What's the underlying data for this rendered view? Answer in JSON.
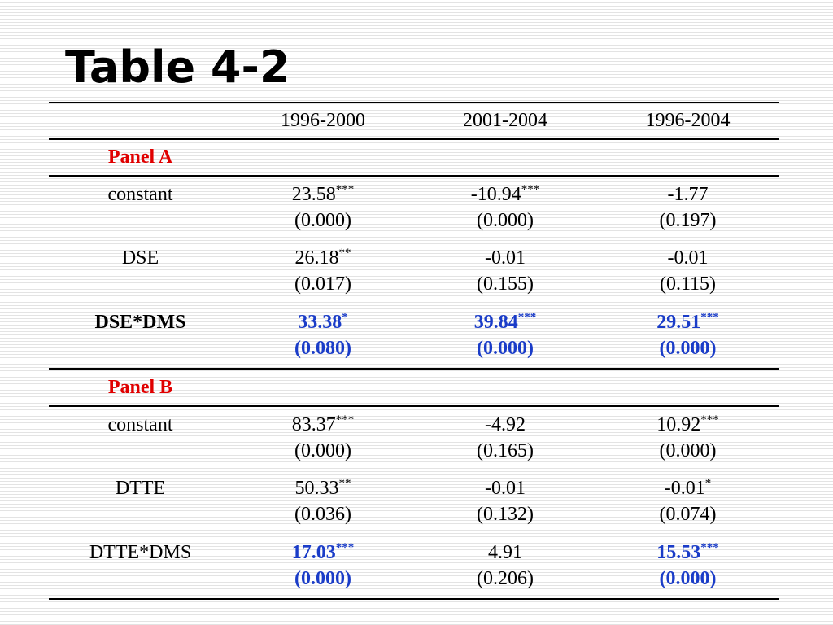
{
  "title": "Table 4-2",
  "colors": {
    "panel_label": "#e00000",
    "highlight": "#1a3cc8",
    "text": "#000000"
  },
  "columns": [
    "",
    "1996-2000",
    "2001-2004",
    "1996-2004"
  ],
  "panels": [
    {
      "label": "Panel A",
      "rows": [
        {
          "label": "constant",
          "label_bold": false,
          "cells": [
            {
              "value": "23.58",
              "stars": "***",
              "p": "(0.000)",
              "highlight": false
            },
            {
              "value": "-10.94",
              "stars": "***",
              "p": "(0.000)",
              "highlight": false
            },
            {
              "value": "-1.77",
              "stars": "",
              "p": "(0.197)",
              "highlight": false
            }
          ]
        },
        {
          "label": "DSE",
          "label_bold": false,
          "cells": [
            {
              "value": "26.18",
              "stars": "**",
              "p": "(0.017)",
              "highlight": false
            },
            {
              "value": "-0.01",
              "stars": "",
              "p": "(0.155)",
              "highlight": false
            },
            {
              "value": "-0.01",
              "stars": "",
              "p": "(0.115)",
              "highlight": false
            }
          ]
        },
        {
          "label": "DSE*DMS",
          "label_bold": true,
          "cells": [
            {
              "value": "33.38",
              "stars": "*",
              "p": "(0.080)",
              "highlight": true
            },
            {
              "value": "39.84",
              "stars": "***",
              "p": "(0.000)",
              "highlight": true
            },
            {
              "value": "29.51",
              "stars": "***",
              "p": "(0.000)",
              "highlight": true
            }
          ]
        }
      ]
    },
    {
      "label": "Panel B",
      "rows": [
        {
          "label": "constant",
          "label_bold": false,
          "cells": [
            {
              "value": "83.37",
              "stars": "***",
              "p": "(0.000)",
              "highlight": false
            },
            {
              "value": "-4.92",
              "stars": "",
              "p": "(0.165)",
              "highlight": false
            },
            {
              "value": "10.92",
              "stars": "***",
              "p": "(0.000)",
              "highlight": false
            }
          ]
        },
        {
          "label": "DTTE",
          "label_bold": false,
          "cells": [
            {
              "value": "50.33",
              "stars": "**",
              "p": "(0.036)",
              "highlight": false
            },
            {
              "value": "-0.01",
              "stars": "",
              "p": "(0.132)",
              "highlight": false
            },
            {
              "value": "-0.01",
              "stars": "*",
              "p": "(0.074)",
              "highlight": false
            }
          ]
        },
        {
          "label": "DTTE*DMS",
          "label_bold": false,
          "cells": [
            {
              "value": "17.03",
              "stars": "***",
              "p": "(0.000)",
              "highlight": true
            },
            {
              "value": "4.91",
              "stars": "",
              "p": "(0.206)",
              "highlight": false
            },
            {
              "value": "15.53",
              "stars": "***",
              "p": "(0.000)",
              "highlight": true
            }
          ]
        }
      ]
    }
  ]
}
